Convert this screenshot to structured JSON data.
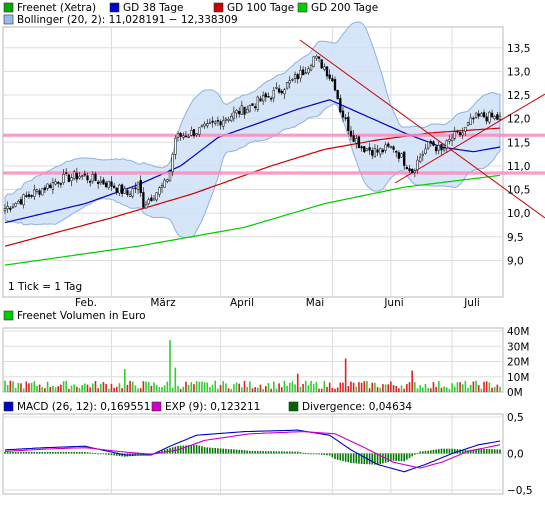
{
  "chart_data": [
    {
      "type": "candlestick",
      "legend": [
        {
          "label": "Freenet (Xetra)",
          "color": "#00aa00"
        },
        {
          "label": "GD 38 Tage",
          "color": "#0000cc"
        },
        {
          "label": "GD 100 Tage",
          "color": "#cc0000"
        },
        {
          "label": "GD 200 Tage",
          "color": "#00cc00"
        },
        {
          "label": "Bollinger (20, 2): 11,028191 − 12,338309",
          "color": "#99bbee"
        }
      ],
      "months": [
        "Feb.",
        "März",
        "April",
        "Mai",
        "Juni",
        "Juli"
      ],
      "yticks": [
        "9,0",
        "9,5",
        "10,0",
        "10,5",
        "11,0",
        "11,5",
        "12,0",
        "12,5",
        "13,0",
        "13,5"
      ],
      "ylim": [
        8.5,
        13.75
      ],
      "note": "1 Tick = 1 Tag",
      "horizontal_lines": [
        11.65,
        10.85
      ],
      "ohlc_keypoints": [
        [
          0,
          10.1
        ],
        [
          10,
          10.4
        ],
        [
          20,
          10.7
        ],
        [
          28,
          10.8
        ],
        [
          34,
          10.7
        ],
        [
          40,
          10.6
        ],
        [
          46,
          10.4
        ],
        [
          50,
          10.6
        ],
        [
          52,
          10.2
        ],
        [
          56,
          10.4
        ],
        [
          60,
          10.6
        ],
        [
          62,
          10.9
        ],
        [
          64,
          11.6
        ],
        [
          70,
          11.7
        ],
        [
          76,
          11.8
        ],
        [
          82,
          12.0
        ],
        [
          90,
          12.2
        ],
        [
          100,
          12.5
        ],
        [
          108,
          12.8
        ],
        [
          112,
          13.0
        ],
        [
          116,
          13.3
        ],
        [
          120,
          13.1
        ],
        [
          124,
          12.7
        ],
        [
          126,
          12.2
        ],
        [
          130,
          11.7
        ],
        [
          134,
          11.4
        ],
        [
          140,
          11.3
        ],
        [
          146,
          11.4
        ],
        [
          150,
          11.1
        ],
        [
          153,
          10.9
        ],
        [
          156,
          11.2
        ],
        [
          160,
          11.5
        ],
        [
          164,
          11.3
        ],
        [
          168,
          11.6
        ],
        [
          172,
          11.7
        ],
        [
          176,
          12.0
        ],
        [
          180,
          12.05
        ],
        [
          186,
          12.0
        ]
      ],
      "moving_averages": {
        "gd38": [
          [
            0,
            9.8
          ],
          [
            30,
            10.2
          ],
          [
            50,
            10.6
          ],
          [
            66,
            11.0
          ],
          [
            80,
            11.6
          ],
          [
            95,
            11.9
          ],
          [
            110,
            12.2
          ],
          [
            122,
            12.4
          ],
          [
            134,
            12.1
          ],
          [
            150,
            11.7
          ],
          [
            164,
            11.4
          ],
          [
            176,
            11.3
          ],
          [
            186,
            11.4
          ]
        ],
        "gd100": [
          [
            0,
            9.3
          ],
          [
            40,
            9.9
          ],
          [
            70,
            10.4
          ],
          [
            100,
            11.0
          ],
          [
            120,
            11.35
          ],
          [
            140,
            11.55
          ],
          [
            160,
            11.7
          ],
          [
            186,
            11.8
          ]
        ],
        "gd200": [
          [
            0,
            8.9
          ],
          [
            50,
            9.3
          ],
          [
            90,
            9.7
          ],
          [
            120,
            10.2
          ],
          [
            150,
            10.55
          ],
          [
            186,
            10.8
          ]
        ]
      }
    },
    {
      "type": "bar",
      "title": "Freenet Volumen in Euro",
      "yticks": [
        "0M",
        "10M",
        "20M",
        "30M",
        "40M"
      ],
      "ylim": [
        0,
        40
      ]
    },
    {
      "type": "line",
      "legend": [
        {
          "label": "MACD (26, 12): 0,169551",
          "color": "#0000cc"
        },
        {
          "label": "EXP (9): 0,123211",
          "color": "#cc00cc"
        },
        {
          "label": "Divergence: 0,04634",
          "color": "#006600"
        }
      ],
      "yticks": [
        "0,5",
        "0,0",
        "−0,5"
      ],
      "ylim": [
        -0.5,
        0.5
      ],
      "macd_keypoints": [
        [
          0,
          0.05
        ],
        [
          15,
          0.08
        ],
        [
          30,
          0.1
        ],
        [
          45,
          -0.02
        ],
        [
          55,
          -0.02
        ],
        [
          62,
          0.1
        ],
        [
          72,
          0.25
        ],
        [
          90,
          0.3
        ],
        [
          110,
          0.32
        ],
        [
          122,
          0.25
        ],
        [
          130,
          0.05
        ],
        [
          140,
          -0.15
        ],
        [
          150,
          -0.25
        ],
        [
          158,
          -0.15
        ],
        [
          168,
          0.0
        ],
        [
          178,
          0.12
        ],
        [
          186,
          0.17
        ]
      ],
      "exp_keypoints": [
        [
          0,
          0.03
        ],
        [
          15,
          0.06
        ],
        [
          30,
          0.08
        ],
        [
          45,
          0.02
        ],
        [
          55,
          -0.01
        ],
        [
          65,
          0.05
        ],
        [
          75,
          0.18
        ],
        [
          92,
          0.27
        ],
        [
          112,
          0.3
        ],
        [
          124,
          0.27
        ],
        [
          134,
          0.1
        ],
        [
          146,
          -0.12
        ],
        [
          156,
          -0.2
        ],
        [
          164,
          -0.12
        ],
        [
          174,
          0.03
        ],
        [
          186,
          0.12
        ]
      ]
    }
  ]
}
